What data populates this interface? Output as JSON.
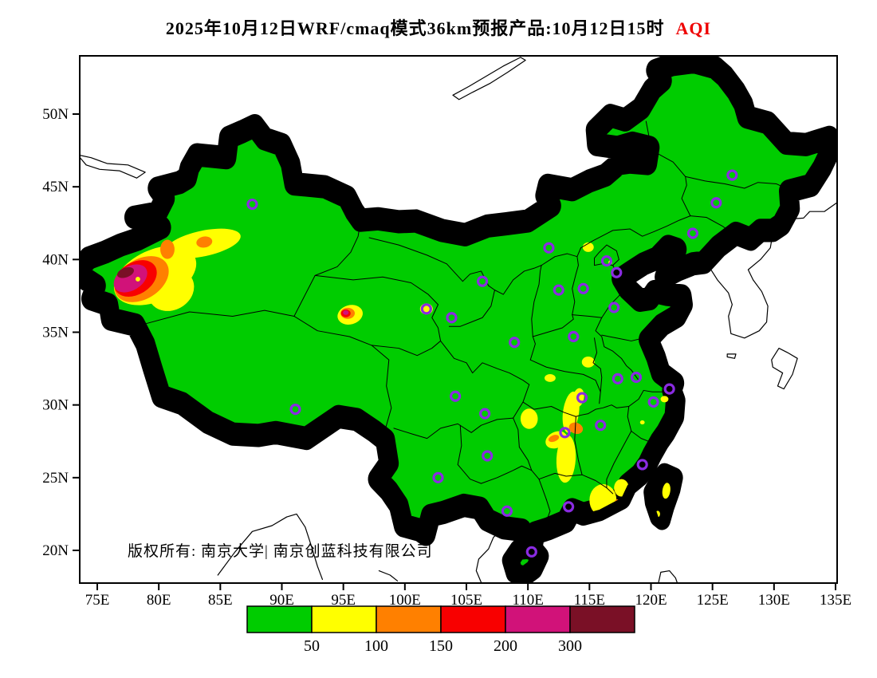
{
  "title": {
    "text": "2025年10月12日WRF/cmaq模式36km预报产品:10月12日15时",
    "variable": "AQI"
  },
  "copyright_text": "版权所有: 南京大学| 南京创蓝科技有限公司",
  "colors": {
    "land_good": "#00CC00",
    "title_highlight": "#EE0000",
    "station_ring": "#8A2BE2",
    "border_line": "#000000",
    "frame": "#000000",
    "sea": "#FFFFFF"
  },
  "legend": {
    "labels": [
      "50",
      "100",
      "150",
      "200",
      "300"
    ],
    "box_colors": [
      "#00CC00",
      "#FFFF00",
      "#FF8000",
      "#F80000",
      "#D11279",
      "#7A1026"
    ]
  },
  "chart_data": {
    "type": "heatmap",
    "title": "2025年10月12日WRF/cmaq模式36km预报产品:10月12日15时 AQI",
    "variable": "AQI",
    "model": "WRF/cmaq 36km",
    "valid_time": "10月12日15时",
    "x_ticks": [
      "75E",
      "80E",
      "85E",
      "90E",
      "95E",
      "100E",
      "105E",
      "110E",
      "115E",
      "120E",
      "125E",
      "130E",
      "135E"
    ],
    "y_ticks": [
      "20N",
      "25N",
      "30N",
      "35N",
      "40N",
      "45N",
      "50N"
    ],
    "lon_range": [
      73.6,
      135.2
    ],
    "lat_range": [
      17.75,
      54.0
    ],
    "legend_position": "bottom",
    "grid": false,
    "aqi_levels": [
      {
        "label": "0-50",
        "color": "#00CC00"
      },
      {
        "label": "50-100",
        "color": "#FFFF00"
      },
      {
        "label": "100-150",
        "color": "#FF8000"
      },
      {
        "label": "150-200",
        "color": "#F80000"
      },
      {
        "label": "200-300",
        "color": "#D11279"
      },
      {
        "label": ">300",
        "color": "#7A1026"
      }
    ],
    "stations": [
      [
        87.6,
        43.8
      ],
      [
        111.7,
        40.8
      ],
      [
        116.4,
        39.9
      ],
      [
        117.2,
        39.1
      ],
      [
        126.6,
        45.8
      ],
      [
        125.3,
        43.9
      ],
      [
        123.4,
        41.8
      ],
      [
        106.3,
        38.5
      ],
      [
        112.5,
        37.9
      ],
      [
        114.5,
        38.0
      ],
      [
        103.8,
        36.0
      ],
      [
        101.75,
        36.6
      ],
      [
        117.0,
        36.7
      ],
      [
        108.9,
        34.3
      ],
      [
        113.7,
        34.7
      ],
      [
        91.1,
        29.7
      ],
      [
        104.1,
        30.6
      ],
      [
        106.5,
        29.4
      ],
      [
        106.7,
        26.5
      ],
      [
        102.7,
        25.0
      ],
      [
        108.3,
        22.7
      ],
      [
        113.3,
        23.0
      ],
      [
        110.3,
        19.9
      ],
      [
        113.0,
        28.1
      ],
      [
        114.4,
        30.5
      ],
      [
        115.9,
        28.6
      ],
      [
        117.3,
        31.8
      ],
      [
        118.8,
        31.9
      ],
      [
        121.5,
        31.1
      ],
      [
        120.2,
        30.2
      ],
      [
        119.3,
        25.9
      ]
    ],
    "hotspots": [
      [
        79.7,
        38.9,
        3.56,
        1.76,
        -25,
        1
      ],
      [
        83.6,
        41.1,
        3.11,
        0.88,
        -12,
        1
      ],
      [
        81.0,
        37.9,
        1.94,
        1.37,
        -30,
        1
      ],
      [
        95.55,
        36.2,
        1.04,
        0.66,
        -15,
        1
      ],
      [
        101.75,
        36.6,
        0.52,
        0.38,
        0,
        1
      ],
      [
        114.9,
        40.85,
        0.45,
        0.33,
        0,
        1
      ],
      [
        116.7,
        39.8,
        0.16,
        0.14,
        0,
        1
      ],
      [
        121.1,
        30.4,
        0.32,
        0.22,
        0,
        1
      ],
      [
        119.3,
        28.8,
        0.19,
        0.14,
        0,
        1
      ],
      [
        111.8,
        31.85,
        0.45,
        0.27,
        0,
        1
      ],
      [
        114.9,
        32.95,
        0.52,
        0.38,
        0,
        1
      ],
      [
        110.1,
        29.05,
        0.7,
        0.7,
        0,
        1
      ],
      [
        114.1,
        30.5,
        0.45,
        0.66,
        10,
        1
      ],
      [
        113.5,
        29.5,
        0.65,
        1.43,
        8,
        1
      ],
      [
        113.1,
        26.3,
        0.78,
        1.65,
        3,
        1
      ],
      [
        112.3,
        27.6,
        0.91,
        0.55,
        -25,
        1
      ],
      [
        116.1,
        23.45,
        1.1,
        1.1,
        0,
        1
      ],
      [
        117.6,
        24.3,
        0.6,
        0.6,
        0,
        1
      ],
      [
        112.8,
        25.3,
        0.26,
        0.19,
        0,
        1
      ],
      [
        93.7,
        27.35,
        1.04,
        0.6,
        15,
        1
      ],
      [
        121.25,
        24.1,
        0.32,
        0.55,
        8,
        1
      ],
      [
        120.55,
        22.5,
        0.19,
        0.22,
        0,
        1
      ],
      [
        78.6,
        38.65,
        2.4,
        1.37,
        -32,
        2
      ],
      [
        80.7,
        40.7,
        0.58,
        0.66,
        0,
        2
      ],
      [
        83.7,
        41.2,
        0.65,
        0.38,
        -10,
        2
      ],
      [
        95.35,
        36.3,
        0.58,
        0.38,
        0,
        2
      ],
      [
        112.1,
        27.7,
        0.45,
        0.22,
        -20,
        2
      ],
      [
        113.9,
        28.4,
        0.58,
        0.38,
        20,
        2
      ],
      [
        117.25,
        23.35,
        0.19,
        0.16,
        0,
        2
      ],
      [
        78.1,
        38.7,
        1.88,
        1.1,
        -32,
        3
      ],
      [
        95.2,
        36.3,
        0.39,
        0.27,
        0,
        3
      ],
      [
        77.7,
        38.7,
        1.49,
        0.82,
        -32,
        4
      ],
      [
        95.2,
        36.35,
        0.23,
        0.16,
        0,
        4
      ],
      [
        77.3,
        39.1,
        0.71,
        0.33,
        -20,
        5
      ],
      [
        78.3,
        38.65,
        0.19,
        0.16,
        0,
        1
      ]
    ]
  }
}
